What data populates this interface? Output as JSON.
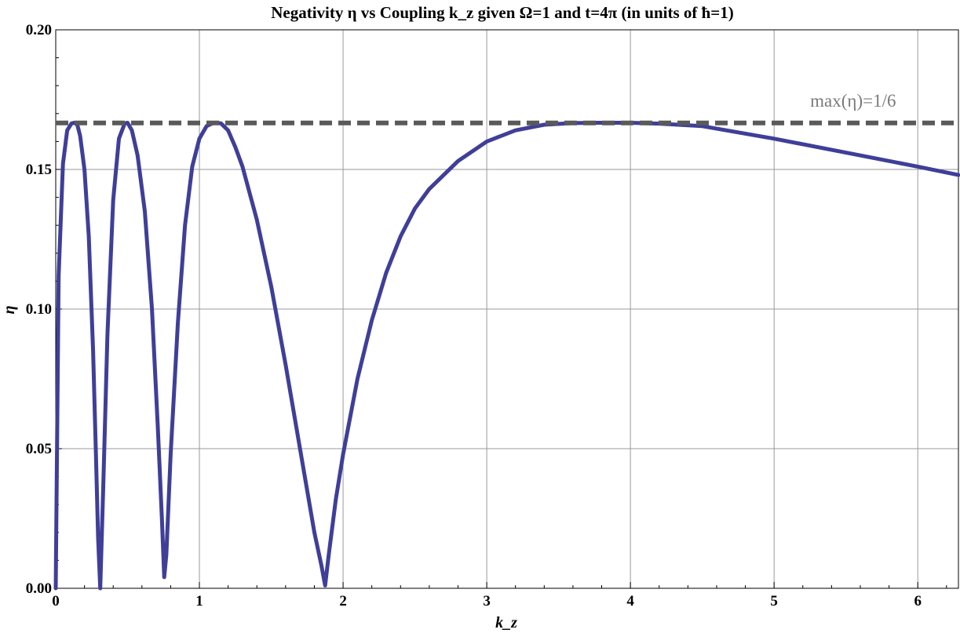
{
  "chart_data": {
    "type": "line",
    "title": "Negativity η vs Coupling k_z given Ω=1 and t=4π (in units of ħ=1)",
    "xlabel": "k_z",
    "ylabel": "η",
    "xlim": [
      0,
      6.283
    ],
    "ylim": [
      0,
      0.2
    ],
    "x_ticks": [
      0,
      1,
      2,
      3,
      4,
      5,
      6
    ],
    "x_tick_labels": [
      "0",
      "1",
      "2",
      "3",
      "4",
      "5",
      "6"
    ],
    "y_ticks": [
      0,
      0.05,
      0.1,
      0.15,
      0.2
    ],
    "y_tick_labels": [
      "0.00",
      "0.05",
      "0.10",
      "0.15",
      "0.20"
    ],
    "grid": true,
    "series": [
      {
        "color": "#3f3f99",
        "style": "solid",
        "x": [
          0,
          0.02,
          0.05,
          0.08,
          0.11,
          0.13,
          0.15,
          0.17,
          0.2,
          0.23,
          0.26,
          0.28,
          0.295,
          0.31,
          0.33,
          0.36,
          0.4,
          0.44,
          0.48,
          0.5,
          0.53,
          0.57,
          0.62,
          0.67,
          0.71,
          0.74,
          0.755,
          0.77,
          0.8,
          0.85,
          0.9,
          0.95,
          1.0,
          1.05,
          1.1,
          1.15,
          1.2,
          1.25,
          1.3,
          1.4,
          1.5,
          1.6,
          1.7,
          1.8,
          1.85,
          1.875,
          1.9,
          1.95,
          2.0,
          2.1,
          2.2,
          2.3,
          2.4,
          2.5,
          2.6,
          2.8,
          3.0,
          3.2,
          3.4,
          3.6,
          3.8,
          4.0,
          4.2,
          4.5,
          5.0,
          5.5,
          6.0,
          6.283
        ],
        "y": [
          0,
          0.112,
          0.152,
          0.164,
          0.1665,
          0.1667,
          0.166,
          0.162,
          0.15,
          0.126,
          0.085,
          0.048,
          0.018,
          0,
          0.035,
          0.091,
          0.139,
          0.161,
          0.1665,
          0.1667,
          0.164,
          0.155,
          0.135,
          0.1,
          0.058,
          0.024,
          0.004,
          0.012,
          0.048,
          0.095,
          0.13,
          0.151,
          0.161,
          0.1655,
          0.1667,
          0.1665,
          0.164,
          0.158,
          0.151,
          0.132,
          0.108,
          0.08,
          0.05,
          0.02,
          0.008,
          0.001,
          0.012,
          0.032,
          0.048,
          0.075,
          0.096,
          0.113,
          0.126,
          0.136,
          0.143,
          0.153,
          0.16,
          0.164,
          0.166,
          0.1666,
          0.1667,
          0.1667,
          0.1664,
          0.1655,
          0.161,
          0.156,
          0.151,
          0.148
        ]
      },
      {
        "color": "#5a5a5a",
        "style": "dashed",
        "x": [
          0,
          6.283
        ],
        "y": [
          0.16667,
          0.16667
        ]
      }
    ],
    "annotations": [
      {
        "text": "max(η)=1/6",
        "x": 5.55,
        "y": 0.1725,
        "color": "#7a7a7a"
      }
    ]
  }
}
